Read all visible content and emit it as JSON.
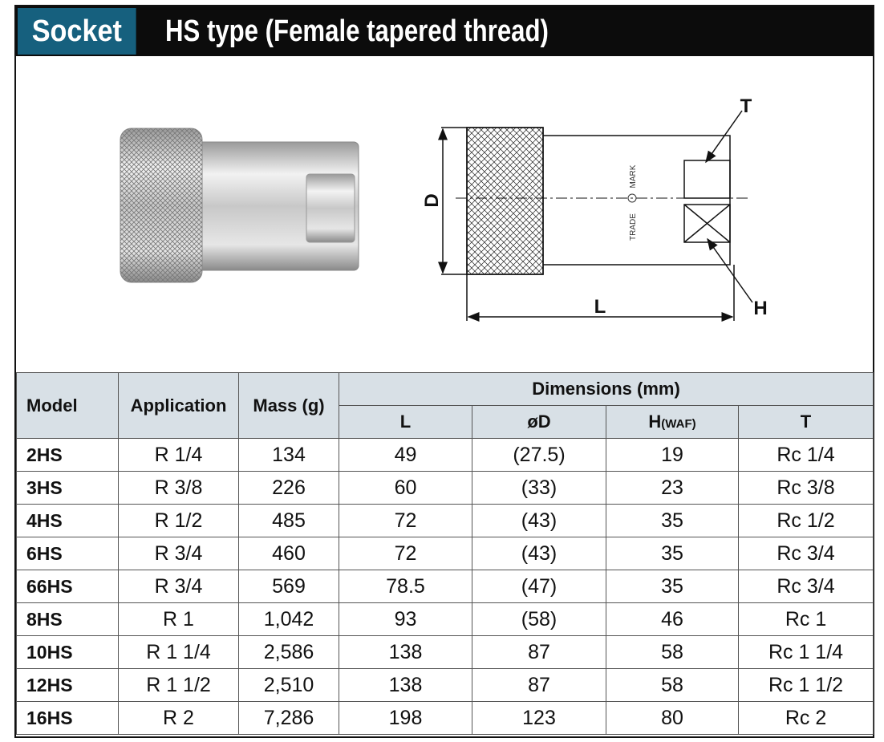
{
  "header": {
    "label": "Socket",
    "title": "HS type (Female tapered thread)"
  },
  "drawing": {
    "dim_t": "T",
    "dim_d": "D",
    "dim_l": "L",
    "dim_h": "H",
    "mark_top": "MARK",
    "mark_bottom": "TRADE"
  },
  "table": {
    "header": {
      "model": "Model",
      "application": "Application",
      "mass": "Mass (g)",
      "dimensions": "Dimensions (mm)",
      "sub": [
        {
          "main": "L"
        },
        {
          "main": "øD"
        },
        {
          "main": "H",
          "note": "(WAF)"
        },
        {
          "main": "T"
        }
      ]
    },
    "rows": [
      [
        "2HS",
        "R 1/4",
        "134",
        "49",
        "(27.5)",
        "19",
        "Rc 1/4"
      ],
      [
        "3HS",
        "R 3/8",
        "226",
        "60",
        "(33)",
        "23",
        "Rc 3/8"
      ],
      [
        "4HS",
        "R 1/2",
        "485",
        "72",
        "(43)",
        "35",
        "Rc 1/2"
      ],
      [
        "6HS",
        "R 3/4",
        "460",
        "72",
        "(43)",
        "35",
        "Rc 3/4"
      ],
      [
        "66HS",
        "R 3/4",
        "569",
        "78.5",
        "(47)",
        "35",
        "Rc 3/4"
      ],
      [
        "8HS",
        "R 1",
        "1,042",
        "93",
        "(58)",
        "46",
        "Rc 1"
      ],
      [
        "10HS",
        "R 1 1/4",
        "2,586",
        "138",
        "87",
        "58",
        "Rc 1 1/4"
      ],
      [
        "12HS",
        "R 1 1/2",
        "2,510",
        "138",
        "87",
        "58",
        "Rc 1 1/2"
      ],
      [
        "16HS",
        "R 2",
        "7,286",
        "198",
        "123",
        "80",
        "Rc 2"
      ]
    ]
  }
}
